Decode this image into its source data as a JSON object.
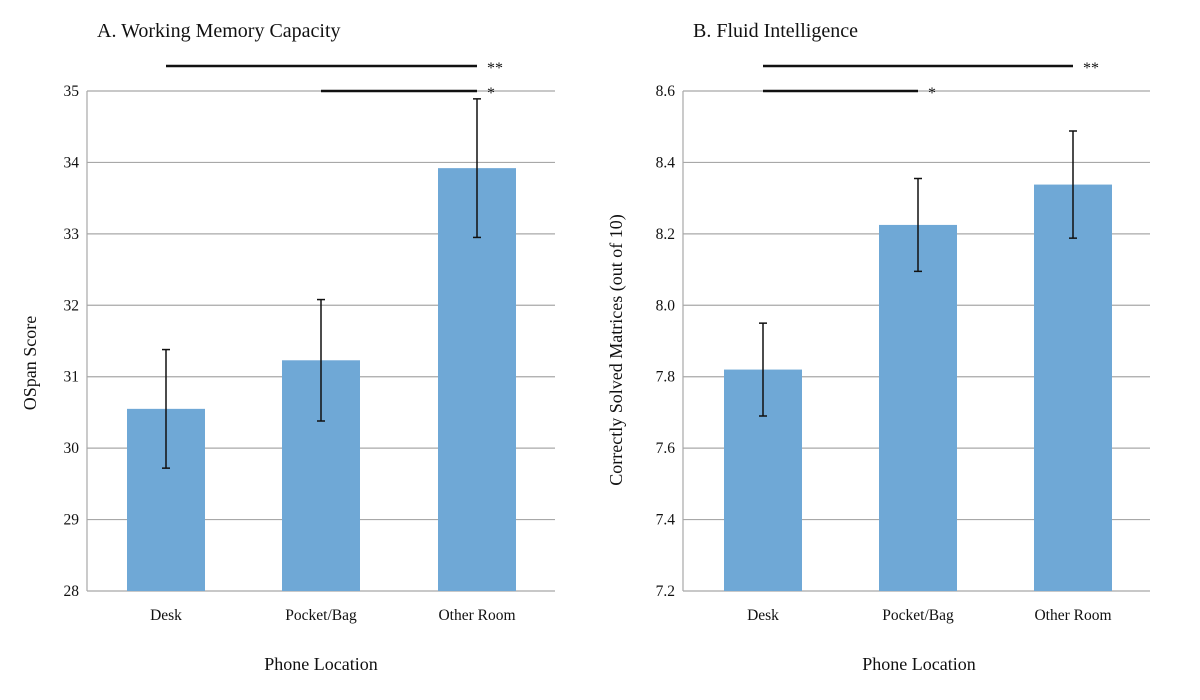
{
  "chart_data": [
    {
      "type": "bar",
      "title": "A. Working Memory Capacity",
      "xlabel": "Phone Location",
      "ylabel": "OSpan Score",
      "ylim": [
        28,
        35
      ],
      "yticks": [
        28,
        29,
        30,
        31,
        32,
        33,
        34,
        35
      ],
      "ytick_decimals": 0,
      "categories": [
        "Desk",
        "Pocket/Bag",
        "Other Room"
      ],
      "values": [
        30.55,
        31.23,
        33.92
      ],
      "error": [
        0.83,
        0.85,
        0.97
      ],
      "bar_color": "#6fa8d6",
      "grid": true,
      "significance": [
        {
          "from": "Desk",
          "to": "Other Room",
          "label": "**"
        },
        {
          "from": "Pocket/Bag",
          "to": "Other Room",
          "label": "*"
        }
      ]
    },
    {
      "type": "bar",
      "title": "B. Fluid Intelligence",
      "xlabel": "Phone Location",
      "ylabel": "Correctly Solved Matrices (out of 10)",
      "ylim": [
        7.2,
        8.6
      ],
      "yticks": [
        7.2,
        7.4,
        7.6,
        7.8,
        8.0,
        8.2,
        8.4,
        8.6
      ],
      "ytick_decimals": 1,
      "categories": [
        "Desk",
        "Pocket/Bag",
        "Other Room"
      ],
      "values": [
        7.82,
        8.225,
        8.338
      ],
      "error": [
        0.13,
        0.13,
        0.15
      ],
      "bar_color": "#6fa8d6",
      "grid": true,
      "significance": [
        {
          "from": "Desk",
          "to": "Other Room",
          "label": "**"
        },
        {
          "from": "Desk",
          "to": "Pocket/Bag",
          "label": "*"
        }
      ]
    }
  ]
}
